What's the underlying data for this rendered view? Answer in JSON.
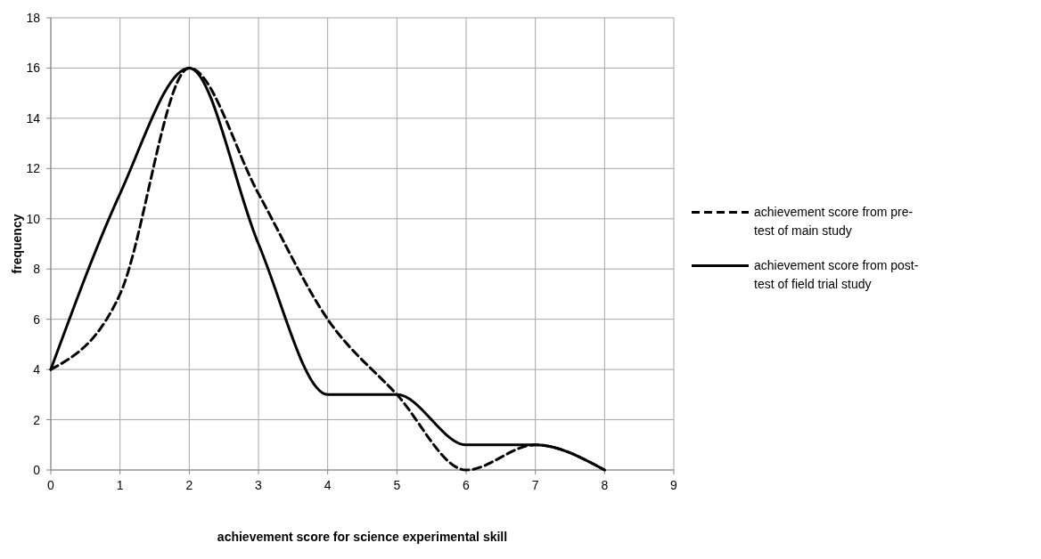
{
  "chart_data": {
    "type": "line",
    "xlabel": "achievement score for science experimental skill",
    "ylabel": "frequency",
    "x": [
      0,
      1,
      2,
      3,
      4,
      5,
      6,
      7,
      8
    ],
    "series": [
      {
        "name": "achievement score from pre-test of main study",
        "color": "#000000",
        "line_style": "dashed",
        "values": [
          4,
          7,
          16,
          11,
          6,
          3,
          0,
          1,
          0
        ]
      },
      {
        "name": "achievement score from post-test of field trial study",
        "color": "#000000",
        "line_style": "solid",
        "values": [
          4,
          11,
          16,
          9,
          3,
          3,
          1,
          1,
          0
        ]
      }
    ],
    "xlim": [
      0,
      9
    ],
    "xticks": [
      0,
      1,
      2,
      3,
      4,
      5,
      6,
      7,
      8,
      9
    ],
    "ylim": [
      0,
      18
    ],
    "yticks": [
      0,
      2,
      4,
      6,
      8,
      10,
      12,
      14,
      16,
      18
    ],
    "grid": true,
    "legend": "right"
  }
}
